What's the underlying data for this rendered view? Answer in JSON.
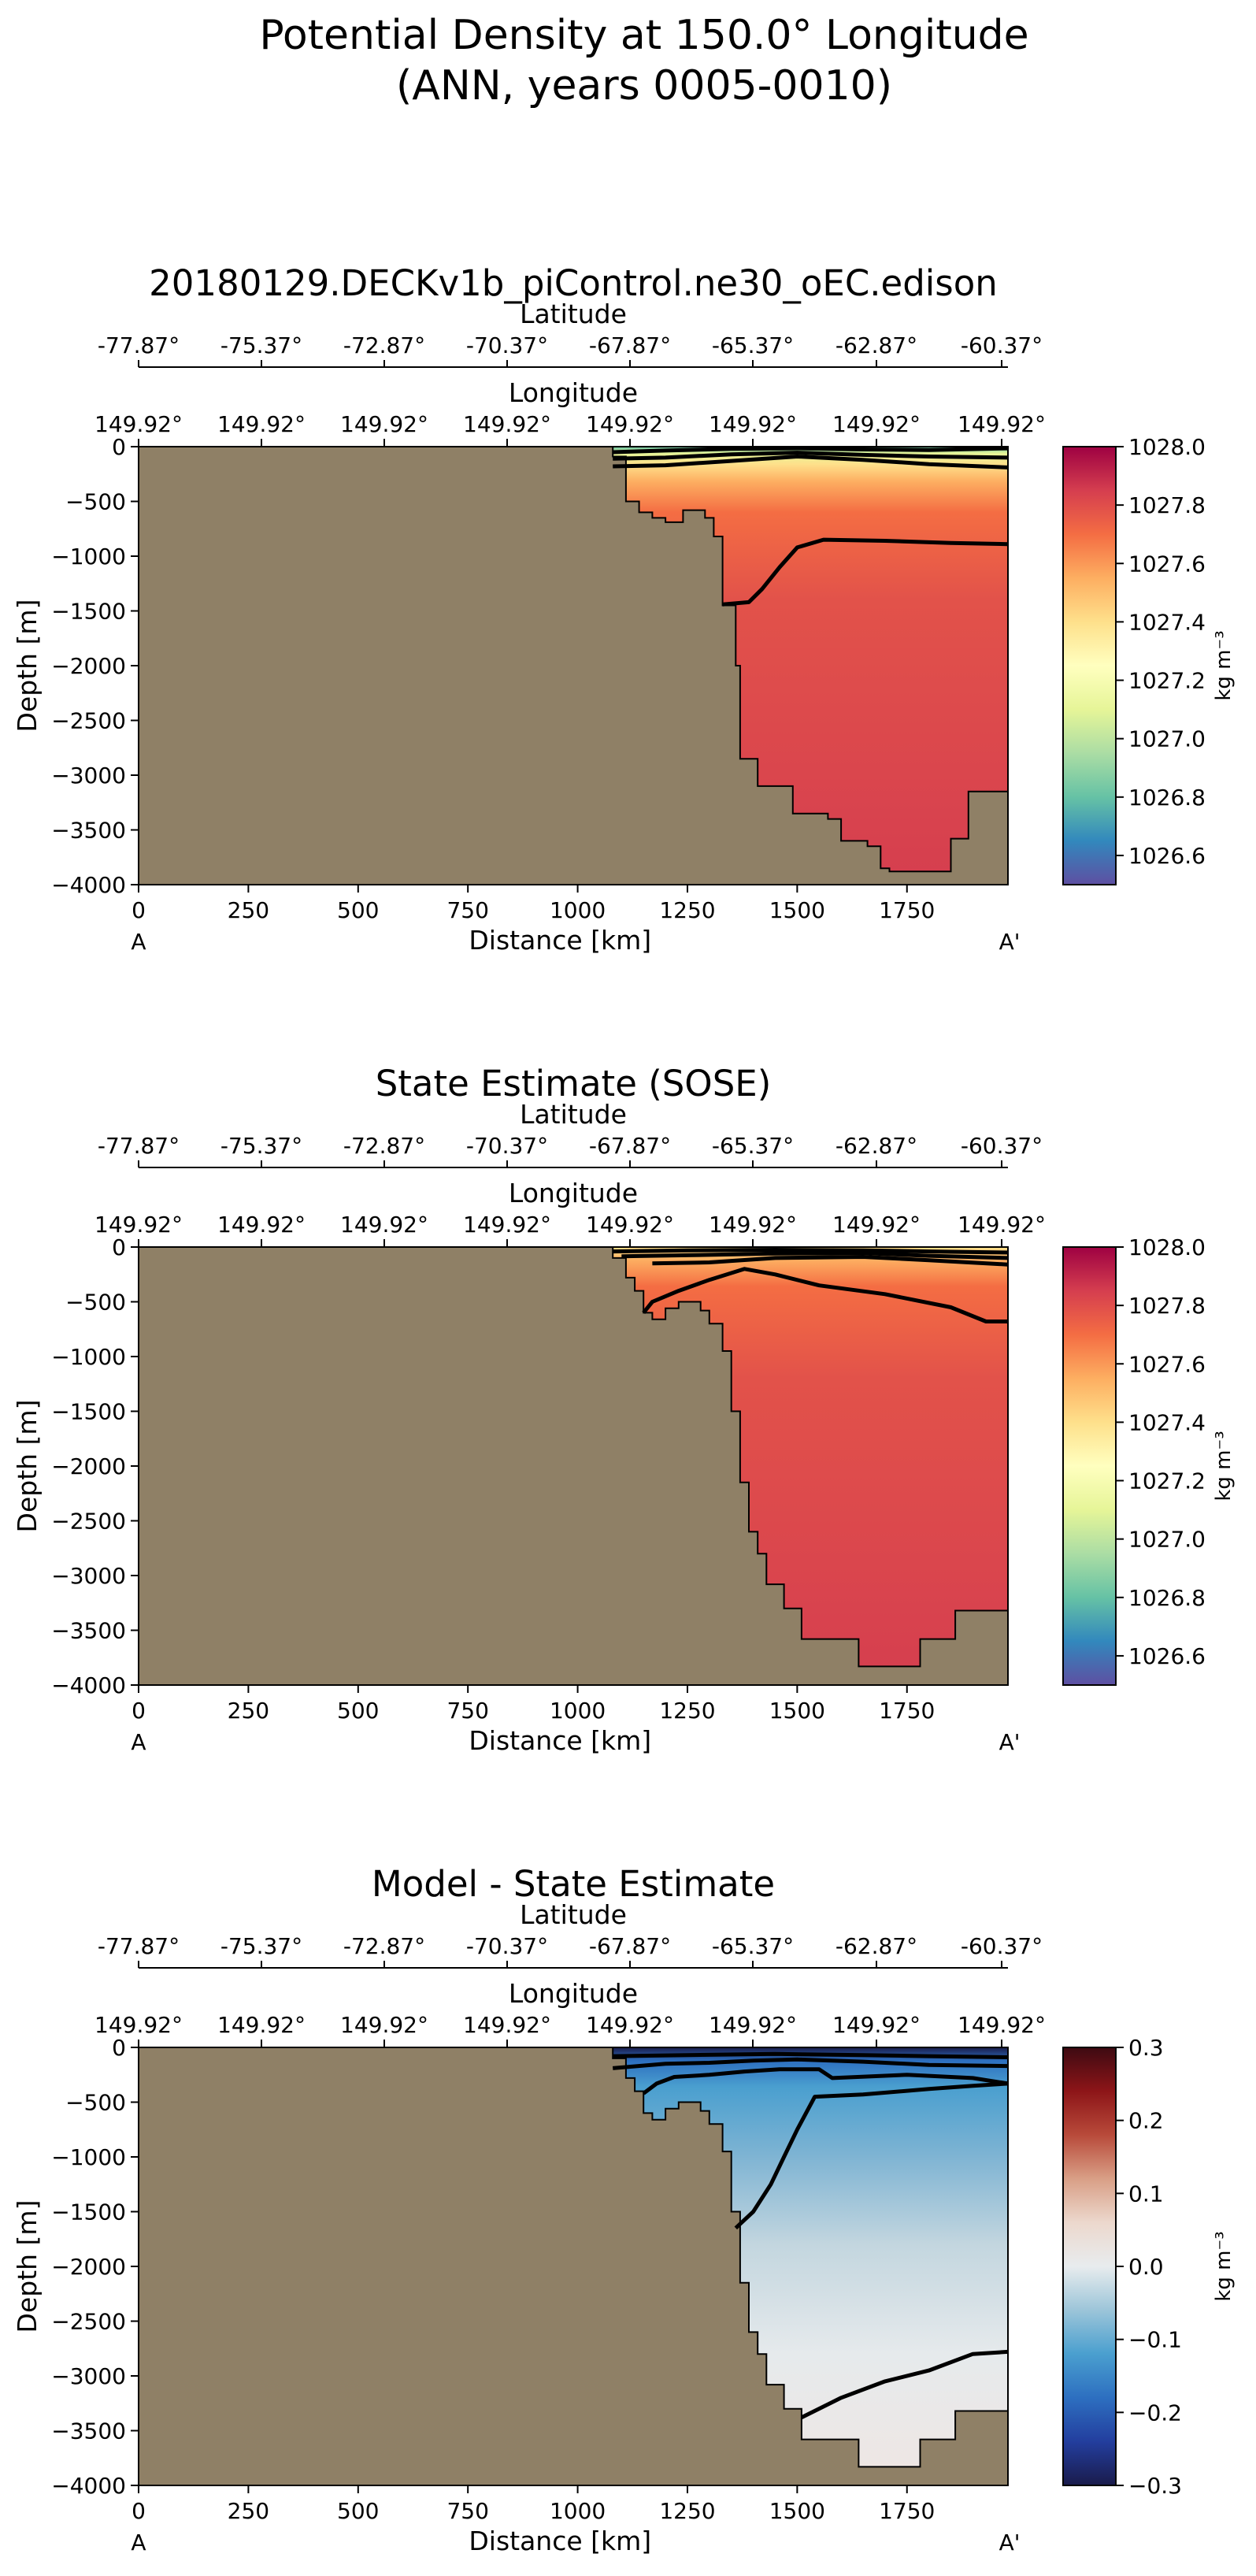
{
  "figure": {
    "title_line1": "Potential Density at 150.0° Longitude",
    "title_line2": "(ANN, years 0005-0010)"
  },
  "colors": {
    "land": "#8f8066",
    "contour": "#000000",
    "density_cmap": [
      "#5e4fa2",
      "#3288bd",
      "#66c2a5",
      "#abdda4",
      "#e6f598",
      "#ffffbf",
      "#fee08b",
      "#fdae61",
      "#f46d43",
      "#d53e4f",
      "#9e0142"
    ],
    "diff_cmap": [
      "#1a1b4b",
      "#233e9e",
      "#2d6fc0",
      "#4a9fcf",
      "#9cc5d9",
      "#e8ecee",
      "#ecd8cd",
      "#d99f86",
      "#b84a3a",
      "#8d1518",
      "#3d0a12"
    ]
  },
  "chart_data": [
    {
      "type": "heatmap",
      "title": "20180129.DECKv1b_piControl.ne30_oEC.edison",
      "xlabel": "Distance [km]",
      "ylabel": "Depth [m]",
      "xlim": [
        0,
        1980
      ],
      "ylim": [
        -4000,
        0
      ],
      "x_ticks": [
        0,
        250,
        500,
        750,
        1000,
        1250,
        1500,
        1750
      ],
      "y_ticks": [
        0,
        -500,
        -1000,
        -1500,
        -2000,
        -2500,
        -3000,
        -3500,
        -4000
      ],
      "x_tick_labels": [
        "0",
        "250",
        "500",
        "750",
        "1000",
        "1250",
        "1500",
        "1750"
      ],
      "y_tick_labels": [
        "0",
        "−500",
        "−1000",
        "−1500",
        "−2000",
        "−2500",
        "−3000",
        "−3500",
        "−4000"
      ],
      "section_start_label": "A",
      "section_end_label": "A'",
      "lat_axis_label": "Latitude",
      "lat_ticks": [
        "-77.87°",
        "-75.37°",
        "-72.87°",
        "-70.37°",
        "-67.87°",
        "-65.37°",
        "-62.87°",
        "-60.37°"
      ],
      "lon_axis_label": "Longitude",
      "lon_ticks": [
        "149.92°",
        "149.92°",
        "149.92°",
        "149.92°",
        "149.92°",
        "149.92°",
        "149.92°",
        "149.92°"
      ],
      "colorbar": {
        "label": "kg m⁻³",
        "range": [
          1026.5,
          1028.0
        ],
        "ticks": [
          1026.6,
          1026.8,
          1027.0,
          1027.2,
          1027.4,
          1027.6,
          1027.8,
          1028.0
        ],
        "tick_labels": [
          "1026.6",
          "1026.8",
          "1027.0",
          "1027.2",
          "1027.4",
          "1027.6",
          "1027.8",
          "1028.0"
        ]
      },
      "bathymetry": [
        [
          1080,
          0
        ],
        [
          1080,
          -90
        ],
        [
          1110,
          -90
        ],
        [
          1110,
          -500
        ],
        [
          1140,
          -500
        ],
        [
          1140,
          -600
        ],
        [
          1170,
          -600
        ],
        [
          1170,
          -650
        ],
        [
          1200,
          -650
        ],
        [
          1200,
          -690
        ],
        [
          1240,
          -690
        ],
        [
          1240,
          -580
        ],
        [
          1290,
          -580
        ],
        [
          1290,
          -650
        ],
        [
          1310,
          -650
        ],
        [
          1310,
          -820
        ],
        [
          1330,
          -820
        ],
        [
          1330,
          -1450
        ],
        [
          1360,
          -1450
        ],
        [
          1360,
          -2000
        ],
        [
          1370,
          -2000
        ],
        [
          1370,
          -2850
        ],
        [
          1410,
          -2850
        ],
        [
          1410,
          -3100
        ],
        [
          1490,
          -3100
        ],
        [
          1490,
          -3350
        ],
        [
          1570,
          -3350
        ],
        [
          1570,
          -3400
        ],
        [
          1600,
          -3400
        ],
        [
          1600,
          -3600
        ],
        [
          1660,
          -3600
        ],
        [
          1660,
          -3650
        ],
        [
          1690,
          -3650
        ],
        [
          1690,
          -3850
        ],
        [
          1710,
          -3850
        ],
        [
          1710,
          -3880
        ],
        [
          1850,
          -3880
        ],
        [
          1850,
          -3580
        ],
        [
          1890,
          -3580
        ],
        [
          1890,
          -3150
        ],
        [
          1980,
          -3150
        ]
      ],
      "contours": [
        [
          [
            1080,
            -50
          ],
          [
            1200,
            -35
          ],
          [
            1350,
            -20
          ],
          [
            1500,
            -15
          ],
          [
            1650,
            -25
          ],
          [
            1800,
            -30
          ],
          [
            1980,
            -15
          ]
        ],
        [
          [
            1080,
            -110
          ],
          [
            1200,
            -100
          ],
          [
            1350,
            -70
          ],
          [
            1500,
            -55
          ],
          [
            1650,
            -75
          ],
          [
            1800,
            -90
          ],
          [
            1980,
            -100
          ]
        ],
        [
          [
            1080,
            -180
          ],
          [
            1200,
            -170
          ],
          [
            1350,
            -130
          ],
          [
            1500,
            -90
          ],
          [
            1650,
            -120
          ],
          [
            1800,
            -160
          ],
          [
            1980,
            -190
          ]
        ],
        [
          [
            1330,
            -1440
          ],
          [
            1390,
            -1420
          ],
          [
            1420,
            -1300
          ],
          [
            1460,
            -1100
          ],
          [
            1500,
            -920
          ],
          [
            1560,
            -850
          ],
          [
            1700,
            -860
          ],
          [
            1850,
            -880
          ],
          [
            1980,
            -890
          ]
        ]
      ],
      "field": "density"
    },
    {
      "type": "heatmap",
      "title": "State Estimate (SOSE)",
      "xlabel": "Distance [km]",
      "ylabel": "Depth [m]",
      "xlim": [
        0,
        1980
      ],
      "ylim": [
        -4000,
        0
      ],
      "x_ticks": [
        0,
        250,
        500,
        750,
        1000,
        1250,
        1500,
        1750
      ],
      "y_ticks": [
        0,
        -500,
        -1000,
        -1500,
        -2000,
        -2500,
        -3000,
        -3500,
        -4000
      ],
      "x_tick_labels": [
        "0",
        "250",
        "500",
        "750",
        "1000",
        "1250",
        "1500",
        "1750"
      ],
      "y_tick_labels": [
        "0",
        "−500",
        "−1000",
        "−1500",
        "−2000",
        "−2500",
        "−3000",
        "−3500",
        "−4000"
      ],
      "section_start_label": "A",
      "section_end_label": "A'",
      "lat_axis_label": "Latitude",
      "lat_ticks": [
        "-77.87°",
        "-75.37°",
        "-72.87°",
        "-70.37°",
        "-67.87°",
        "-65.37°",
        "-62.87°",
        "-60.37°"
      ],
      "lon_axis_label": "Longitude",
      "lon_ticks": [
        "149.92°",
        "149.92°",
        "149.92°",
        "149.92°",
        "149.92°",
        "149.92°",
        "149.92°",
        "149.92°"
      ],
      "colorbar": {
        "label": "kg m⁻³",
        "range": [
          1026.5,
          1028.0
        ],
        "ticks": [
          1026.6,
          1026.8,
          1027.0,
          1027.2,
          1027.4,
          1027.6,
          1027.8,
          1028.0
        ],
        "tick_labels": [
          "1026.6",
          "1026.8",
          "1027.0",
          "1027.2",
          "1027.4",
          "1027.6",
          "1027.8",
          "1028.0"
        ]
      },
      "bathymetry": [
        [
          1080,
          0
        ],
        [
          1080,
          -100
        ],
        [
          1110,
          -100
        ],
        [
          1110,
          -280
        ],
        [
          1130,
          -280
        ],
        [
          1130,
          -400
        ],
        [
          1150,
          -400
        ],
        [
          1150,
          -600
        ],
        [
          1170,
          -600
        ],
        [
          1170,
          -660
        ],
        [
          1200,
          -660
        ],
        [
          1200,
          -560
        ],
        [
          1230,
          -560
        ],
        [
          1230,
          -500
        ],
        [
          1280,
          -500
        ],
        [
          1280,
          -580
        ],
        [
          1300,
          -580
        ],
        [
          1300,
          -700
        ],
        [
          1330,
          -700
        ],
        [
          1330,
          -950
        ],
        [
          1350,
          -950
        ],
        [
          1350,
          -1500
        ],
        [
          1370,
          -1500
        ],
        [
          1370,
          -2150
        ],
        [
          1390,
          -2150
        ],
        [
          1390,
          -2600
        ],
        [
          1410,
          -2600
        ],
        [
          1410,
          -2800
        ],
        [
          1430,
          -2800
        ],
        [
          1430,
          -3080
        ],
        [
          1470,
          -3080
        ],
        [
          1470,
          -3300
        ],
        [
          1510,
          -3300
        ],
        [
          1510,
          -3580
        ],
        [
          1640,
          -3580
        ],
        [
          1640,
          -3830
        ],
        [
          1780,
          -3830
        ],
        [
          1780,
          -3580
        ],
        [
          1860,
          -3580
        ],
        [
          1860,
          -3320
        ],
        [
          1980,
          -3320
        ]
      ],
      "contours": [
        [
          [
            1080,
            -40
          ],
          [
            1250,
            -30
          ],
          [
            1450,
            -25
          ],
          [
            1650,
            -30
          ],
          [
            1800,
            -40
          ],
          [
            1980,
            -50
          ]
        ],
        [
          [
            1100,
            -85
          ],
          [
            1250,
            -75
          ],
          [
            1450,
            -60
          ],
          [
            1650,
            -55
          ],
          [
            1800,
            -80
          ],
          [
            1980,
            -100
          ]
        ],
        [
          [
            1170,
            -150
          ],
          [
            1300,
            -140
          ],
          [
            1450,
            -100
          ],
          [
            1650,
            -90
          ],
          [
            1800,
            -120
          ],
          [
            1980,
            -160
          ]
        ],
        [
          [
            1150,
            -600
          ],
          [
            1170,
            -500
          ],
          [
            1230,
            -400
          ],
          [
            1300,
            -300
          ],
          [
            1380,
            -200
          ],
          [
            1450,
            -250
          ],
          [
            1550,
            -350
          ],
          [
            1700,
            -430
          ],
          [
            1850,
            -550
          ],
          [
            1930,
            -680
          ],
          [
            1980,
            -680
          ]
        ]
      ],
      "field": "density"
    },
    {
      "type": "heatmap",
      "title": "Model - State Estimate",
      "xlabel": "Distance [km]",
      "ylabel": "Depth [m]",
      "xlim": [
        0,
        1980
      ],
      "ylim": [
        -4000,
        0
      ],
      "x_ticks": [
        0,
        250,
        500,
        750,
        1000,
        1250,
        1500,
        1750
      ],
      "y_ticks": [
        0,
        -500,
        -1000,
        -1500,
        -2000,
        -2500,
        -3000,
        -3500,
        -4000
      ],
      "x_tick_labels": [
        "0",
        "250",
        "500",
        "750",
        "1000",
        "1250",
        "1500",
        "1750"
      ],
      "y_tick_labels": [
        "0",
        "−500",
        "−1000",
        "−1500",
        "−2000",
        "−2500",
        "−3000",
        "−3500",
        "−4000"
      ],
      "section_start_label": "A",
      "section_end_label": "A'",
      "lat_axis_label": "Latitude",
      "lat_ticks": [
        "-77.87°",
        "-75.37°",
        "-72.87°",
        "-70.37°",
        "-67.87°",
        "-65.37°",
        "-62.87°",
        "-60.37°"
      ],
      "lon_axis_label": "Longitude",
      "lon_ticks": [
        "149.92°",
        "149.92°",
        "149.92°",
        "149.92°",
        "149.92°",
        "149.92°",
        "149.92°",
        "149.92°"
      ],
      "colorbar": {
        "label": "kg m⁻³",
        "range": [
          -0.3,
          0.3
        ],
        "ticks": [
          -0.3,
          -0.2,
          -0.1,
          0.0,
          0.1,
          0.2,
          0.3
        ],
        "tick_labels": [
          "−0.3",
          "−0.2",
          "−0.1",
          "0.0",
          "0.1",
          "0.2",
          "0.3"
        ]
      },
      "bathymetry": [
        [
          1080,
          0
        ],
        [
          1080,
          -100
        ],
        [
          1110,
          -100
        ],
        [
          1110,
          -280
        ],
        [
          1130,
          -280
        ],
        [
          1130,
          -400
        ],
        [
          1150,
          -400
        ],
        [
          1150,
          -600
        ],
        [
          1170,
          -600
        ],
        [
          1170,
          -660
        ],
        [
          1200,
          -660
        ],
        [
          1200,
          -560
        ],
        [
          1230,
          -560
        ],
        [
          1230,
          -500
        ],
        [
          1280,
          -500
        ],
        [
          1280,
          -580
        ],
        [
          1300,
          -580
        ],
        [
          1300,
          -700
        ],
        [
          1330,
          -700
        ],
        [
          1330,
          -950
        ],
        [
          1350,
          -950
        ],
        [
          1350,
          -1500
        ],
        [
          1370,
          -1500
        ],
        [
          1370,
          -2150
        ],
        [
          1390,
          -2150
        ],
        [
          1390,
          -2600
        ],
        [
          1410,
          -2600
        ],
        [
          1410,
          -2800
        ],
        [
          1430,
          -2800
        ],
        [
          1430,
          -3080
        ],
        [
          1470,
          -3080
        ],
        [
          1470,
          -3300
        ],
        [
          1510,
          -3300
        ],
        [
          1510,
          -3580
        ],
        [
          1640,
          -3580
        ],
        [
          1640,
          -3830
        ],
        [
          1780,
          -3830
        ],
        [
          1780,
          -3580
        ],
        [
          1860,
          -3580
        ],
        [
          1860,
          -3320
        ],
        [
          1980,
          -3320
        ]
      ],
      "contours": [
        [
          [
            1080,
            -80
          ],
          [
            1250,
            -70
          ],
          [
            1450,
            -60
          ],
          [
            1650,
            -70
          ],
          [
            1800,
            -80
          ],
          [
            1980,
            -90
          ]
        ],
        [
          [
            1080,
            -190
          ],
          [
            1200,
            -150
          ],
          [
            1300,
            -140
          ],
          [
            1400,
            -120
          ],
          [
            1500,
            -110
          ],
          [
            1650,
            -130
          ],
          [
            1800,
            -160
          ],
          [
            1980,
            -170
          ]
        ],
        [
          [
            1150,
            -420
          ],
          [
            1180,
            -330
          ],
          [
            1220,
            -270
          ],
          [
            1300,
            -250
          ],
          [
            1380,
            -220
          ],
          [
            1460,
            -200
          ],
          [
            1550,
            -200
          ],
          [
            1580,
            -280
          ],
          [
            1750,
            -250
          ],
          [
            1900,
            -280
          ],
          [
            1980,
            -330
          ]
        ],
        [
          [
            1360,
            -1650
          ],
          [
            1400,
            -1500
          ],
          [
            1440,
            -1250
          ],
          [
            1470,
            -1000
          ],
          [
            1500,
            -750
          ],
          [
            1540,
            -450
          ],
          [
            1650,
            -430
          ],
          [
            1800,
            -380
          ],
          [
            1900,
            -350
          ],
          [
            1980,
            -330
          ]
        ],
        [
          [
            1510,
            -3380
          ],
          [
            1600,
            -3200
          ],
          [
            1700,
            -3050
          ],
          [
            1800,
            -2950
          ],
          [
            1900,
            -2800
          ],
          [
            1980,
            -2780
          ]
        ]
      ],
      "field": "difference"
    }
  ]
}
